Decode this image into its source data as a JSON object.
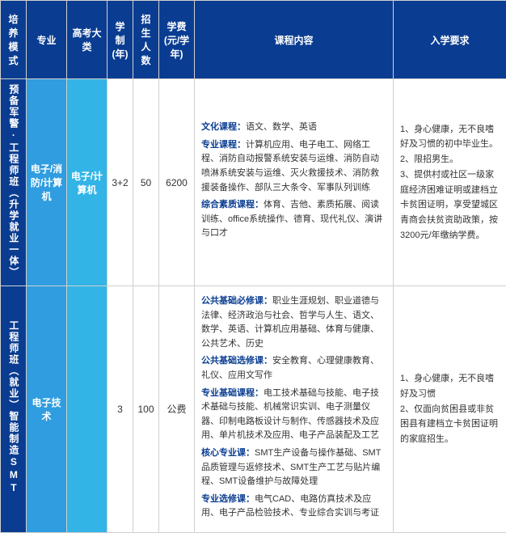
{
  "headers": {
    "mode": "培养模式",
    "major": "专业",
    "category": "高考大类",
    "years": "学制(年)",
    "count": "招生人数",
    "fee": "学费(元/学年)",
    "course": "课程内容",
    "req": "入学要求"
  },
  "rows": [
    {
      "mode": "预备军警·工程师班（升学就业一体）",
      "major": "电子/消防/计算机",
      "category": "电子/计算机",
      "years": "3+2",
      "count": "50",
      "fee": "6200",
      "course": [
        {
          "label": "文化课程：",
          "text": "语文、数学、英语"
        },
        {
          "label": "专业课程：",
          "text": "计算机应用、电子电工、网络工程、消防自动报警系统安装与运维、消防自动喷淋系统安装与运维、灭火救援技术、消防救援装备操作、部队三大条令、军事队列训练"
        },
        {
          "label": "综合素质课程：",
          "text": "体育、吉他、素质拓展、阅读训练、office系统操作、德育、现代礼仪、演讲与口才"
        }
      ],
      "req": "1、身心健康，无不良嗜好及习惯的初中毕业生。\n2、限招男生。\n3、提供村或社区一级家庭经济困难证明或建档立卡贫困证明，享受望城区青商会扶贫资助政策，按3200元/年缴纳学费。"
    },
    {
      "mode": "工程师班（就业）智能制造SMT",
      "major": "电子技术",
      "category": "",
      "years": "3",
      "count": "100",
      "fee": "公费",
      "course": [
        {
          "label": "公共基础必修课：",
          "text": "职业生涯规划、职业道德与法律、经济政治与社会、哲学与人生、语文、数学、英语、计算机应用基础、体育与健康、公共艺术、历史"
        },
        {
          "label": "公共基础选修课：",
          "text": "安全教育、心理健康教育、礼仪、应用文写作"
        },
        {
          "label": "专业基础课程：",
          "text": "电工技术基础与技能、电子技术基础与技能、机械常识实训、电子测量仪器、印制电路板设计与制作、传感器技术及应用、单片机技术及应用、电子产品装配及工艺"
        },
        {
          "label": "核心专业课：",
          "text": "SMT生产设备与操作基础、SMT品质管理与返修技术、SMT生产工艺与贴片编程、SMT设备维护与故障处理"
        },
        {
          "label": "专业选修课：",
          "text": "电气CAD、电路仿真技术及应用、电子产品检验技术、专业综合实训与考证"
        }
      ],
      "req": "1、身心健康，无不良嗜好及习惯\n2、仅面向贫困县或非贫困县有建档立卡贫困证明的家庭招生。"
    }
  ],
  "colors": {
    "header_bg": "#0a3d91",
    "major_bg": "#2f9de0",
    "cat_bg": "#32b4e6",
    "label_color": "#0a3d91",
    "text_color": "#333333",
    "border_color": "#d0d0d0"
  }
}
